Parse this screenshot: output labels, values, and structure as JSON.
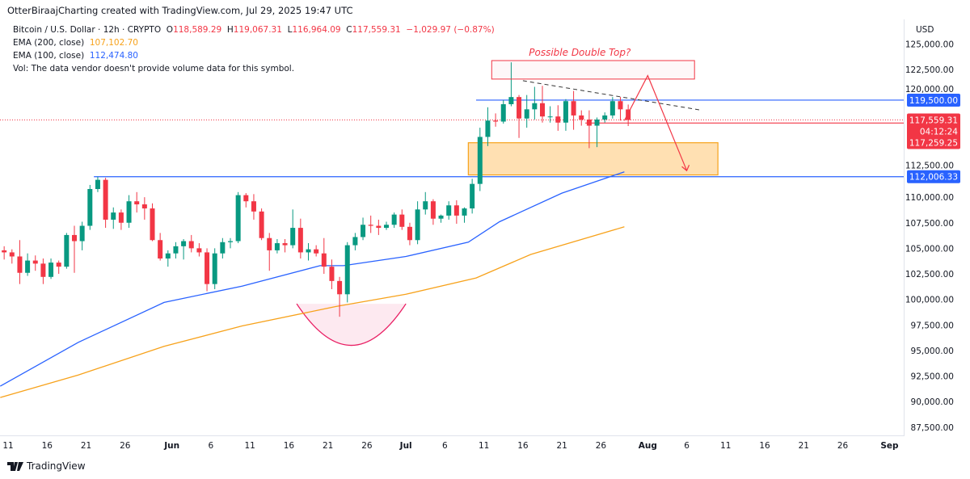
{
  "attribution": "OtterBiraajCharting created with TradingView.com, Jul 29, 2025 19:47 UTC",
  "legend": {
    "symbol": "Bitcoin / U.S. Dollar · 12h · CRYPTO",
    "open_label": "O",
    "open": "118,589.29",
    "high_label": "H",
    "high": "119,067.31",
    "low_label": "L",
    "low": "116,964.09",
    "close_label": "C",
    "close": "117,559.31",
    "change": "−1,029.97 (−0.87%)",
    "ema200_label": "EMA (200, close)",
    "ema200_value": "107,102.70",
    "ema100_label": "EMA (100, close)",
    "ema100_value": "112,474.80",
    "vol_note": "Vol: The data vendor doesn't provide volume data for this symbol."
  },
  "currency": "USD",
  "branding": "TradingView",
  "colors": {
    "up": "#089981",
    "down": "#f23645",
    "ema200": "#f7a21b",
    "ema100": "#2962ff",
    "level": "#2962ff",
    "zone": "#ffe0b2",
    "zone_border": "#f7a21b",
    "annotation": "#f23645",
    "bowl": "#fce4ec"
  },
  "chart_data": {
    "type": "candlestick",
    "interval": "12h",
    "ylim": [
      86500,
      126000
    ],
    "xlim": [
      "2025-05-10",
      "2025-09-03"
    ],
    "grid": false,
    "y_ticks": [
      "125,000.00",
      "122,500.00",
      "120,000.00",
      "112,500.00",
      "110,000.00",
      "107,500.00",
      "105,000.00",
      "102,500.00",
      "100,000.00",
      "97,500.00",
      "95,000.00",
      "92,500.00",
      "90,000.00",
      "87,500.00"
    ],
    "x_ticks": [
      {
        "date": "2025-05-11",
        "label": "11"
      },
      {
        "date": "2025-05-16",
        "label": "16"
      },
      {
        "date": "2025-05-21",
        "label": "21"
      },
      {
        "date": "2025-05-26",
        "label": "26"
      },
      {
        "date": "2025-06-01",
        "label": "Jun",
        "bold": true
      },
      {
        "date": "2025-06-06",
        "label": "6"
      },
      {
        "date": "2025-06-11",
        "label": "11"
      },
      {
        "date": "2025-06-16",
        "label": "16"
      },
      {
        "date": "2025-06-21",
        "label": "21"
      },
      {
        "date": "2025-06-26",
        "label": "26"
      },
      {
        "date": "2025-07-01",
        "label": "Jul",
        "bold": true
      },
      {
        "date": "2025-07-06",
        "label": "6"
      },
      {
        "date": "2025-07-11",
        "label": "11"
      },
      {
        "date": "2025-07-16",
        "label": "16"
      },
      {
        "date": "2025-07-21",
        "label": "21"
      },
      {
        "date": "2025-07-26",
        "label": "26"
      },
      {
        "date": "2025-08-01",
        "label": "Aug",
        "bold": true
      },
      {
        "date": "2025-08-06",
        "label": "6"
      },
      {
        "date": "2025-08-11",
        "label": "11"
      },
      {
        "date": "2025-08-16",
        "label": "16"
      },
      {
        "date": "2025-08-21",
        "label": "21"
      },
      {
        "date": "2025-08-26",
        "label": "26"
      },
      {
        "date": "2025-09-01",
        "label": "Sep",
        "bold": true
      }
    ],
    "ohlc": [
      [
        "2025-05-10",
        104800,
        105200,
        103900,
        104600
      ],
      [
        "2025-05-11",
        104600,
        104900,
        103500,
        104200
      ],
      [
        "2025-05-12",
        104200,
        105800,
        101500,
        102600
      ],
      [
        "2025-05-13",
        102600,
        104500,
        102300,
        103800
      ],
      [
        "2025-05-14",
        103800,
        104300,
        102800,
        103500
      ],
      [
        "2025-05-15",
        103500,
        104000,
        101500,
        102200
      ],
      [
        "2025-05-16",
        102200,
        104000,
        102000,
        103600
      ],
      [
        "2025-05-17",
        103600,
        103800,
        102500,
        103200
      ],
      [
        "2025-05-18",
        103200,
        106500,
        103000,
        106300
      ],
      [
        "2025-05-19",
        106300,
        107200,
        102600,
        105700
      ],
      [
        "2025-05-20",
        105700,
        107600,
        104800,
        107200
      ],
      [
        "2025-05-21",
        107200,
        111200,
        106800,
        110800
      ],
      [
        "2025-05-22",
        110800,
        112000,
        110500,
        111700
      ],
      [
        "2025-05-23",
        111700,
        111900,
        107000,
        107800
      ],
      [
        "2025-05-24",
        107800,
        109000,
        106900,
        108500
      ],
      [
        "2025-05-25",
        108500,
        108800,
        106800,
        107500
      ],
      [
        "2025-05-26",
        107500,
        110200,
        107000,
        109600
      ],
      [
        "2025-05-27",
        109600,
        110500,
        108500,
        109300
      ],
      [
        "2025-05-28",
        109300,
        110000,
        107800,
        108900
      ],
      [
        "2025-05-29",
        108900,
        109400,
        105700,
        105800
      ],
      [
        "2025-05-30",
        105800,
        106500,
        103800,
        104000
      ],
      [
        "2025-05-31",
        104000,
        104800,
        103200,
        104500
      ],
      [
        "2025-06-01",
        104500,
        105600,
        104000,
        105200
      ],
      [
        "2025-06-02",
        105200,
        105900,
        103900,
        105700
      ],
      [
        "2025-06-03",
        105700,
        106300,
        104600,
        105000
      ],
      [
        "2025-06-04",
        105000,
        105500,
        104200,
        104600
      ],
      [
        "2025-06-05",
        104600,
        105000,
        100800,
        101500
      ],
      [
        "2025-06-06",
        101500,
        105000,
        101000,
        104500
      ],
      [
        "2025-06-07",
        104500,
        106000,
        104000,
        105600
      ],
      [
        "2025-06-08",
        105600,
        106000,
        105000,
        105700
      ],
      [
        "2025-06-09",
        105700,
        110500,
        105500,
        110200
      ],
      [
        "2025-06-10",
        110200,
        110400,
        109000,
        109600
      ],
      [
        "2025-06-11",
        109600,
        110300,
        107800,
        108600
      ],
      [
        "2025-06-12",
        108600,
        108900,
        105800,
        106000
      ],
      [
        "2025-06-13",
        106000,
        106500,
        102800,
        104800
      ],
      [
        "2025-06-14",
        104800,
        105900,
        104500,
        105500
      ],
      [
        "2025-06-15",
        105500,
        105900,
        104600,
        105300
      ],
      [
        "2025-06-16",
        105300,
        108800,
        105000,
        107000
      ],
      [
        "2025-06-17",
        107000,
        107900,
        104000,
        104600
      ],
      [
        "2025-06-18",
        104600,
        105500,
        103800,
        104900
      ],
      [
        "2025-06-19",
        104900,
        105300,
        104200,
        104500
      ],
      [
        "2025-06-20",
        104500,
        106000,
        102500,
        103200
      ],
      [
        "2025-06-21",
        103200,
        103900,
        101000,
        101800
      ],
      [
        "2025-06-22",
        101800,
        102200,
        98300,
        100500
      ],
      [
        "2025-06-23",
        100500,
        105600,
        99700,
        105300
      ],
      [
        "2025-06-24",
        105300,
        106500,
        104800,
        106100
      ],
      [
        "2025-06-25",
        106100,
        108000,
        105800,
        107300
      ],
      [
        "2025-06-26",
        107300,
        108200,
        106500,
        107200
      ],
      [
        "2025-06-27",
        107200,
        107800,
        106300,
        107000
      ],
      [
        "2025-06-28",
        107000,
        107600,
        106800,
        107300
      ],
      [
        "2025-06-29",
        107300,
        108500,
        107000,
        108300
      ],
      [
        "2025-06-30",
        108300,
        108800,
        106800,
        107100
      ],
      [
        "2025-07-01",
        107100,
        107500,
        105300,
        105800
      ],
      [
        "2025-07-02",
        105800,
        109600,
        105400,
        108800
      ],
      [
        "2025-07-03",
        108800,
        110500,
        108300,
        109600
      ],
      [
        "2025-07-04",
        109600,
        109800,
        107300,
        107900
      ],
      [
        "2025-07-05",
        107900,
        108300,
        107500,
        108200
      ],
      [
        "2025-07-06",
        108200,
        109600,
        107800,
        109200
      ],
      [
        "2025-07-07",
        109200,
        109700,
        107400,
        108200
      ],
      [
        "2025-07-08",
        108200,
        109000,
        107500,
        108900
      ],
      [
        "2025-07-09",
        108900,
        111800,
        108400,
        111300
      ],
      [
        "2025-07-10",
        111300,
        116800,
        110600,
        115900
      ],
      [
        "2025-07-11",
        115900,
        118800,
        115000,
        117500
      ],
      [
        "2025-07-12",
        117500,
        118200,
        116900,
        117400
      ],
      [
        "2025-07-13",
        117400,
        119500,
        117200,
        119100
      ],
      [
        "2025-07-14",
        119100,
        123200,
        118900,
        119800
      ],
      [
        "2025-07-15",
        119800,
        120000,
        115800,
        117700
      ],
      [
        "2025-07-16",
        117700,
        120000,
        116800,
        118600
      ],
      [
        "2025-07-17",
        118600,
        120800,
        117600,
        119200
      ],
      [
        "2025-07-18",
        119200,
        120900,
        117300,
        117900
      ],
      [
        "2025-07-19",
        117900,
        118900,
        117300,
        117900
      ],
      [
        "2025-07-20",
        117900,
        119000,
        116500,
        117300
      ],
      [
        "2025-07-21",
        117300,
        119600,
        116500,
        119400
      ],
      [
        "2025-07-22",
        119400,
        120400,
        116600,
        118000
      ],
      [
        "2025-07-23",
        118000,
        118500,
        117000,
        117600
      ],
      [
        "2025-07-24",
        117600,
        118500,
        114800,
        117000
      ],
      [
        "2025-07-25",
        117000,
        117800,
        114900,
        117600
      ],
      [
        "2025-07-26",
        117600,
        118300,
        117300,
        118000
      ],
      [
        "2025-07-27",
        118000,
        119800,
        117700,
        119400
      ],
      [
        "2025-07-28",
        119400,
        119800,
        117500,
        118600
      ],
      [
        "2025-07-29",
        118589,
        119067,
        116964,
        117559
      ]
    ],
    "ema100": [
      [
        "2025-05-10",
        91500
      ],
      [
        "2025-05-20",
        95800
      ],
      [
        "2025-05-31",
        99700
      ],
      [
        "2025-06-10",
        101300
      ],
      [
        "2025-06-20",
        103300
      ],
      [
        "2025-06-23",
        103300
      ],
      [
        "2025-07-01",
        104200
      ],
      [
        "2025-07-09",
        105600
      ],
      [
        "2025-07-13",
        107600
      ],
      [
        "2025-07-21",
        110400
      ],
      [
        "2025-07-29",
        112475
      ]
    ],
    "ema200": [
      [
        "2025-05-10",
        90400
      ],
      [
        "2025-05-20",
        92600
      ],
      [
        "2025-05-31",
        95400
      ],
      [
        "2025-06-10",
        97400
      ],
      [
        "2025-06-22",
        99300
      ],
      [
        "2025-07-01",
        100500
      ],
      [
        "2025-07-10",
        102100
      ],
      [
        "2025-07-17",
        104400
      ],
      [
        "2025-07-29",
        107103
      ]
    ],
    "levels": [
      {
        "price": 119500,
        "from": "2025-07-10",
        "label": "119,500.00",
        "color": "#2962ff"
      },
      {
        "price": 112006.33,
        "from": "2025-05-22",
        "label": "112,006.33",
        "color": "#2962ff"
      },
      {
        "price": 117259.25,
        "from": "2025-07-24",
        "label": "117,259.25",
        "color": "#f23645"
      }
    ],
    "last_price": {
      "price": 117559.31,
      "label": "117,559.31",
      "countdown": "04:12:24"
    },
    "annotations": {
      "text": {
        "label": "Possible Double Top?",
        "date": "2025-08-01",
        "price": 124100
      },
      "top_box": {
        "from": "2025-07-12",
        "to": "2025-08-07",
        "top": 123370,
        "bottom": 121560
      },
      "support_zone": {
        "from": "2025-07-09",
        "to": "2025-08-10",
        "top": 115330,
        "bottom": 112180
      },
      "trendline": [
        [
          "2025-07-16",
          121400
        ],
        [
          "2025-08-08",
          118500
        ]
      ],
      "path": [
        [
          "2025-07-29",
          117500
        ],
        [
          "2025-08-01",
          121900
        ],
        [
          "2025-08-06",
          112600
        ]
      ],
      "bowl": {
        "from": "2025-06-17",
        "to": "2025-07-01",
        "top": 99570,
        "bottom": 95500
      }
    }
  }
}
